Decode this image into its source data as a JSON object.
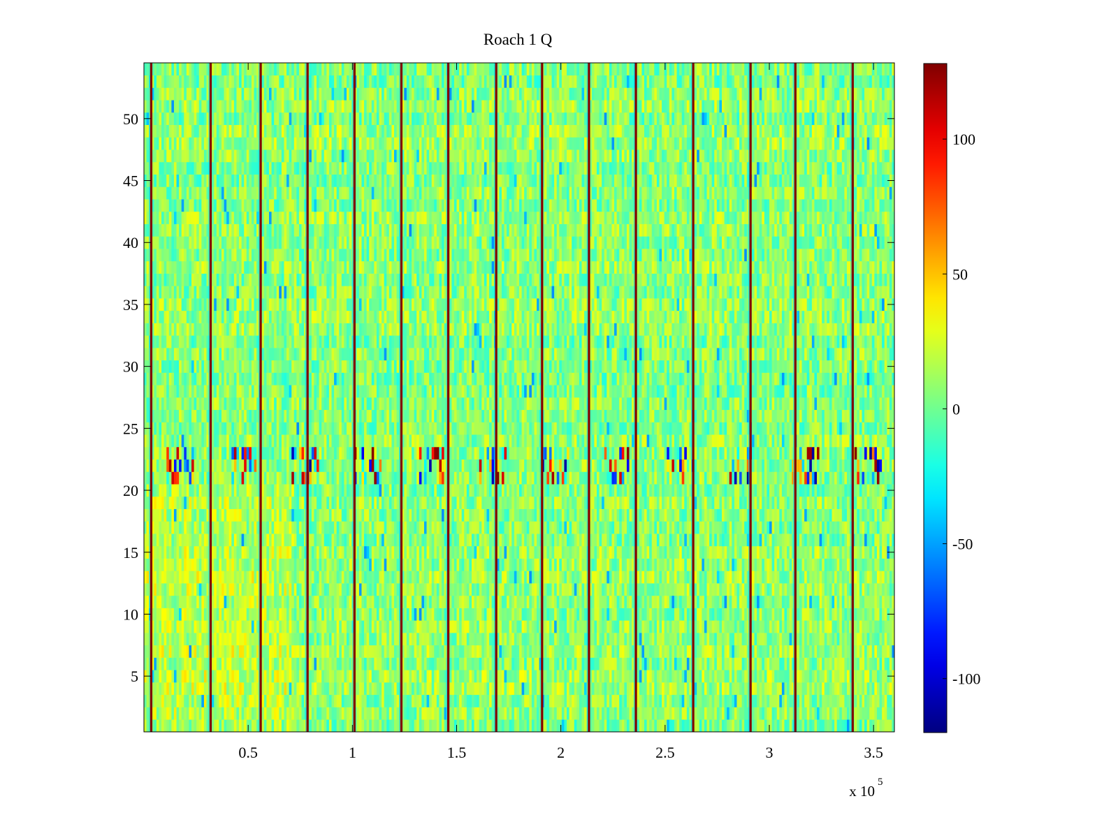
{
  "chart_data": {
    "type": "heatmap",
    "title": "Roach 1 Q",
    "xlabel": "",
    "ylabel": "",
    "x_range": [
      0,
      360000
    ],
    "y_range": [
      0.5,
      54.5
    ],
    "x_multiplier_label": "x 10",
    "x_multiplier_exponent": "5",
    "x_ticks": [
      {
        "value": 50000,
        "label": "0.5"
      },
      {
        "value": 100000,
        "label": "1"
      },
      {
        "value": 150000,
        "label": "1.5"
      },
      {
        "value": 200000,
        "label": "2"
      },
      {
        "value": 250000,
        "label": "2.5"
      },
      {
        "value": 300000,
        "label": "3"
      },
      {
        "value": 350000,
        "label": "3.5"
      }
    ],
    "y_ticks": [
      {
        "value": 5,
        "label": "5"
      },
      {
        "value": 10,
        "label": "10"
      },
      {
        "value": 15,
        "label": "15"
      },
      {
        "value": 20,
        "label": "20"
      },
      {
        "value": 25,
        "label": "25"
      },
      {
        "value": 30,
        "label": "30"
      },
      {
        "value": 35,
        "label": "35"
      },
      {
        "value": 40,
        "label": "40"
      },
      {
        "value": 45,
        "label": "45"
      },
      {
        "value": 50,
        "label": "50"
      }
    ],
    "colorbar": {
      "colormap": "jet",
      "clim": [
        -120,
        128
      ],
      "ticks": [
        {
          "value": 100,
          "label": "100"
        },
        {
          "value": 50,
          "label": "50"
        },
        {
          "value": 0,
          "label": "0"
        },
        {
          "value": -50,
          "label": "-50"
        },
        {
          "value": -100,
          "label": "-100"
        }
      ]
    },
    "rows": 54,
    "background_value_range": [
      -15,
      30
    ],
    "high_variance_rows": [
      21,
      22,
      23
    ],
    "high_variance_row_value_range": [
      -120,
      128
    ],
    "spike_columns_x": [
      3500,
      32000,
      56000,
      78500,
      101000,
      123500,
      146000,
      169000,
      191000,
      213500,
      236000,
      263500,
      291000,
      312500,
      340000
    ],
    "spike_value_range": [
      100,
      128
    ],
    "grid": false,
    "legend": "none"
  }
}
